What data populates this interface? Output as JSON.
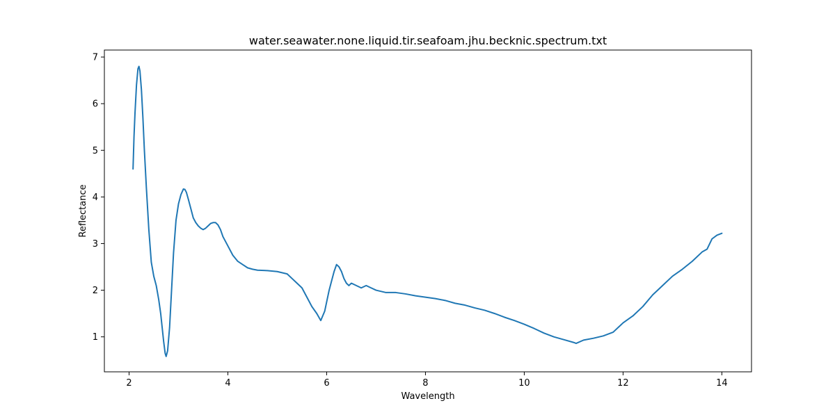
{
  "chart_data": {
    "type": "line",
    "title": "water.seawater.none.liquid.tir.seafoam.jhu.becknic.spectrum.txt",
    "xlabel": "Wavelength",
    "ylabel": "Reflectance",
    "xlim": [
      1.5,
      14.6
    ],
    "ylim": [
      0.25,
      7.15
    ],
    "xticks": [
      2,
      4,
      6,
      8,
      10,
      12,
      14
    ],
    "yticks": [
      1,
      2,
      3,
      4,
      5,
      6,
      7
    ],
    "grid": false,
    "line_color": "#1f77b4",
    "series": [
      {
        "x": [
          2.08,
          2.1,
          2.12,
          2.15,
          2.18,
          2.2,
          2.22,
          2.25,
          2.28,
          2.31,
          2.35,
          2.4,
          2.45,
          2.5,
          2.55,
          2.6,
          2.64,
          2.67,
          2.7,
          2.73,
          2.75,
          2.78,
          2.82,
          2.86,
          2.9,
          2.95,
          3.0,
          3.05,
          3.1,
          3.13,
          3.16,
          3.2,
          3.25,
          3.3,
          3.35,
          3.4,
          3.45,
          3.5,
          3.55,
          3.6,
          3.65,
          3.7,
          3.75,
          3.8,
          3.85,
          3.9,
          4.0,
          4.1,
          4.2,
          4.3,
          4.4,
          4.5,
          4.6,
          4.8,
          5.0,
          5.2,
          5.3,
          5.4,
          5.5,
          5.6,
          5.7,
          5.8,
          5.88,
          5.92,
          5.96,
          6.0,
          6.05,
          6.1,
          6.15,
          6.2,
          6.25,
          6.3,
          6.35,
          6.4,
          6.45,
          6.5,
          6.6,
          6.7,
          6.8,
          6.9,
          7.0,
          7.2,
          7.4,
          7.6,
          7.8,
          8.0,
          8.2,
          8.4,
          8.6,
          8.8,
          9.0,
          9.2,
          9.4,
          9.6,
          9.8,
          10.0,
          10.2,
          10.4,
          10.6,
          10.8,
          11.0,
          11.05,
          11.2,
          11.4,
          11.6,
          11.8,
          12.0,
          12.2,
          12.4,
          12.6,
          12.8,
          13.0,
          13.2,
          13.4,
          13.6,
          13.7,
          13.8,
          13.9,
          14.0
        ],
        "y": [
          4.6,
          5.3,
          5.8,
          6.4,
          6.75,
          6.8,
          6.7,
          6.3,
          5.7,
          5.0,
          4.2,
          3.3,
          2.6,
          2.3,
          2.1,
          1.8,
          1.5,
          1.2,
          0.9,
          0.65,
          0.58,
          0.7,
          1.2,
          2.0,
          2.8,
          3.5,
          3.85,
          4.05,
          4.17,
          4.16,
          4.1,
          3.95,
          3.75,
          3.55,
          3.45,
          3.38,
          3.33,
          3.3,
          3.33,
          3.38,
          3.43,
          3.45,
          3.45,
          3.4,
          3.3,
          3.15,
          2.95,
          2.75,
          2.62,
          2.55,
          2.48,
          2.45,
          2.43,
          2.42,
          2.4,
          2.35,
          2.25,
          2.15,
          2.05,
          1.85,
          1.65,
          1.5,
          1.35,
          1.45,
          1.55,
          1.75,
          2.0,
          2.2,
          2.4,
          2.55,
          2.5,
          2.4,
          2.25,
          2.15,
          2.1,
          2.15,
          2.1,
          2.05,
          2.1,
          2.05,
          2.0,
          1.95,
          1.95,
          1.92,
          1.88,
          1.85,
          1.82,
          1.78,
          1.72,
          1.68,
          1.62,
          1.57,
          1.5,
          1.42,
          1.35,
          1.27,
          1.18,
          1.08,
          1.0,
          0.94,
          0.88,
          0.86,
          0.93,
          0.97,
          1.02,
          1.1,
          1.3,
          1.45,
          1.65,
          1.9,
          2.1,
          2.3,
          2.45,
          2.62,
          2.82,
          2.88,
          3.1,
          3.18,
          3.22
        ]
      }
    ]
  }
}
